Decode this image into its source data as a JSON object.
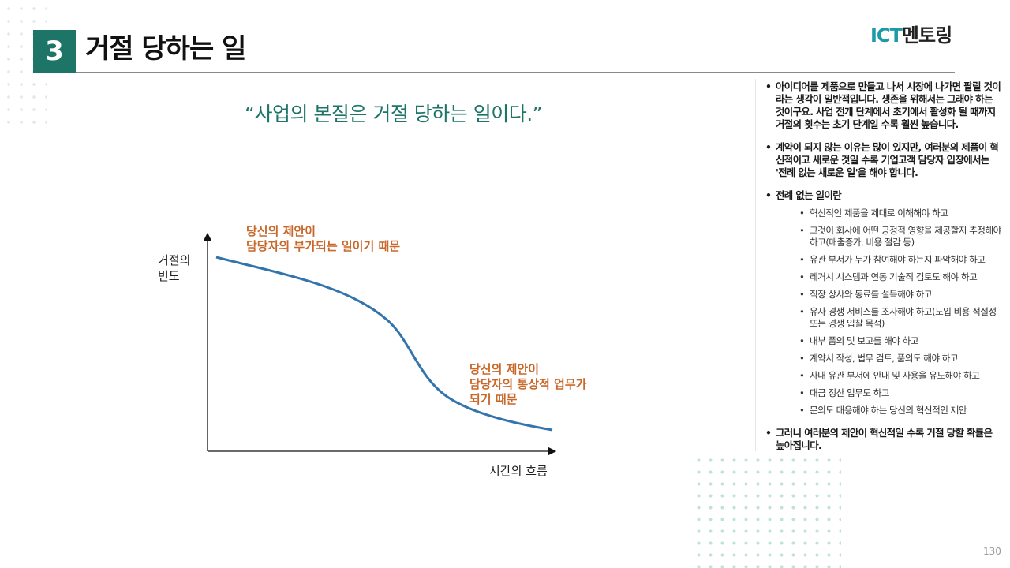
{
  "header": {
    "section_number": "3",
    "title": "거절 당하는 일",
    "logo_ict": "ICT",
    "logo_text": "멘토링"
  },
  "quote": "“사업의 본질은 거절 당하는 일이다.”",
  "chart": {
    "y_axis_label": "거절의\n빈도",
    "x_axis_label": "시간의 흐름",
    "annotation_high": "당신의 제안이\n담당자의 부가되는 일이기 때문",
    "annotation_low": "당신의 제안이\n담당자의 통상적 업무가\n되기 때문",
    "curve_color": "#3474ad",
    "annotation_color": "#c8682a"
  },
  "bullets": {
    "item1": "아이디어를 제품으로 만들고 나서 시장에 나가면 팔릴 것이라는 생각이 일반적입니다. 생존을 위해서는 그래야 하는 것이구요. 사업 전개 단계에서 초기에서 활성화 될 때까지 거절의 횟수는 초기 단계일 수록 훨씬 높습니다.",
    "item2": "계약이 되지 않는 이유는 많이 있지만, 여러분의 제품이 혁신적이고 새로운 것일 수록 기업고객 담당자 입장에서는 '전례 없는 새로운 일'을 해야 합니다.",
    "item3": "전례 없는 일이란",
    "sub": [
      "혁신적인 제품을 제대로 이해해야 하고",
      "그것이 회사에 어떤 긍정적 영향을 제공할지 추정해야 하고(매출증가, 비용 절감 등)",
      "유관 부서가 누가 참여해야 하는지 파악해야 하고",
      "레거시 시스템과 연동 기술적 검토도 해야 하고",
      "직장 상사와 동료를 설득해야 하고",
      "유사 경쟁 서비스를 조사해야 하고(도입 비용 적절성 또는 경쟁 입찰 목적)",
      "내부 품의 및 보고를 해야 하고",
      "계약서 작성, 법무 검토, 품의도 해야 하고",
      "사내 유관 부서에 안내 및 사용을 유도해야 하고",
      "대금 정산 업무도 하고",
      "문의도 대응해야 하는 당신의 혁신적인 제안"
    ],
    "item4": "그러니 여러분의 제안이 혁신적일 수록 거절 당할 확률은 높아집니다."
  },
  "page_number": "130",
  "colors": {
    "accent": "#1d7567",
    "logo_accent": "#1d9aa7"
  }
}
